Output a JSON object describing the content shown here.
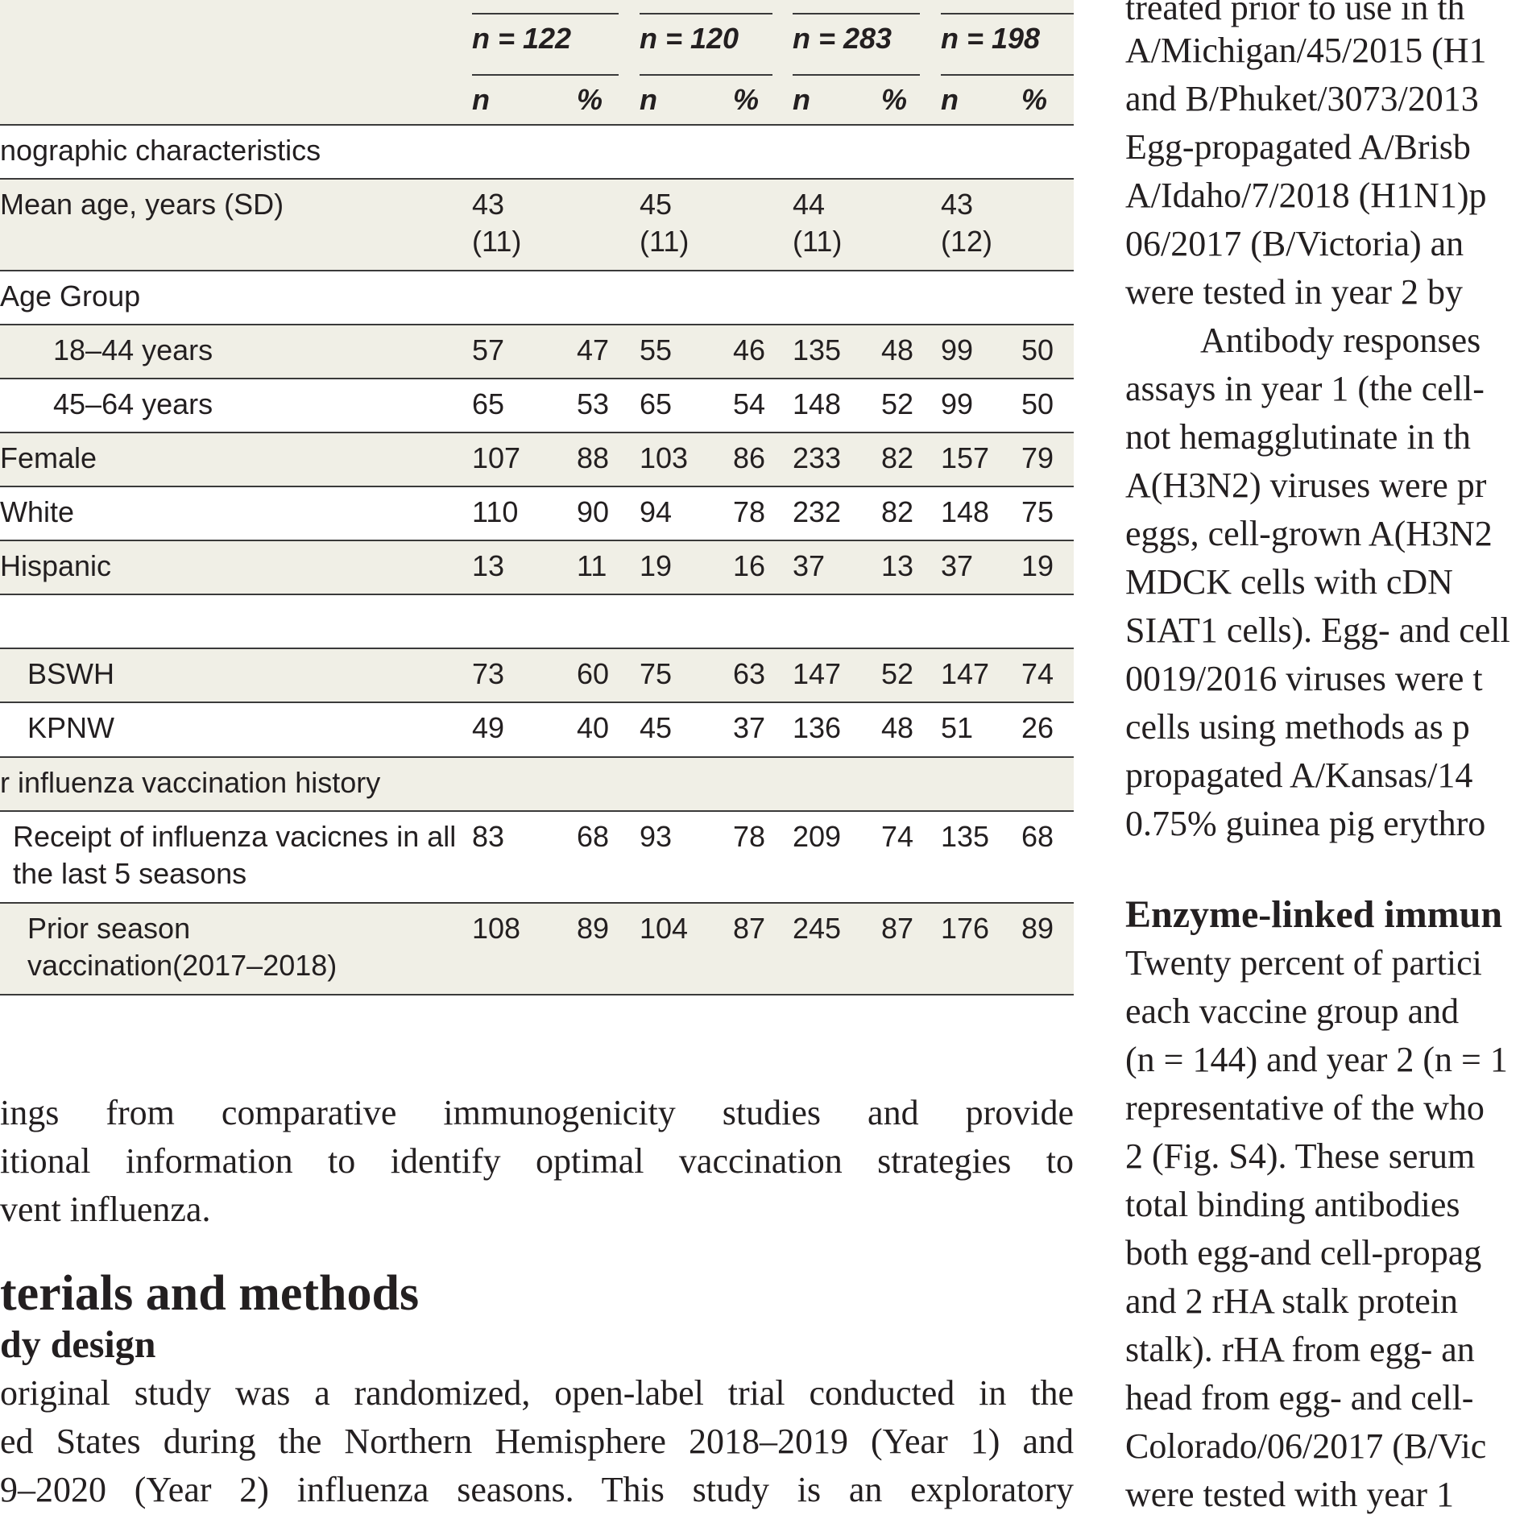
{
  "table": {
    "group_headers": [
      "n = 122",
      "n = 120",
      "n = 283",
      "n = 198"
    ],
    "subheaders": [
      "n",
      "%",
      "n",
      "%",
      "n",
      "%",
      "n",
      "%"
    ],
    "rows": [
      {
        "label": "nographic characteristics",
        "values": []
      },
      {
        "label": "Mean age, years (SD)",
        "values": [
          "43\n(11)",
          "",
          "45\n(11)",
          "",
          "44\n(11)",
          "",
          "43\n(12)",
          ""
        ]
      },
      {
        "label": "Age Group",
        "values": []
      },
      {
        "label": "18–44 years",
        "values": [
          "57",
          "47",
          "55",
          "46",
          "135",
          "48",
          "99",
          "50"
        ]
      },
      {
        "label": "45–64 years",
        "values": [
          "65",
          "53",
          "65",
          "54",
          "148",
          "52",
          "99",
          "50"
        ]
      },
      {
        "label": "Female",
        "values": [
          "107",
          "88",
          "103",
          "86",
          "233",
          "82",
          "157",
          "79"
        ]
      },
      {
        "label": "White",
        "values": [
          "110",
          "90",
          "94",
          "78",
          "232",
          "82",
          "148",
          "75"
        ]
      },
      {
        "label": "Hispanic",
        "values": [
          "13",
          "11",
          "19",
          "16",
          "37",
          "13",
          "37",
          "19"
        ]
      },
      {
        "label": "",
        "values": []
      },
      {
        "label": "BSWH",
        "values": [
          "73",
          "60",
          "75",
          "63",
          "147",
          "52",
          "147",
          "74"
        ]
      },
      {
        "label": "KPNW",
        "values": [
          "49",
          "40",
          "45",
          "37",
          "136",
          "48",
          "51",
          "26"
        ]
      },
      {
        "label": "r influenza vaccination history",
        "values": []
      },
      {
        "label": "Receipt of influenza vacicnes in all the last 5 seasons",
        "values": [
          "83",
          "68",
          "93",
          "78",
          "209",
          "74",
          "135",
          "68"
        ]
      },
      {
        "label": "Prior season vaccination(2017–2018)",
        "values": [
          "108",
          "89",
          "104",
          "87",
          "245",
          "87",
          "176",
          "89"
        ]
      }
    ]
  },
  "left_text": {
    "para_lines": [
      "ings from comparative immunogenicity studies and provide",
      "itional information to identify optimal vaccination strategies to",
      "vent influenza."
    ],
    "heading": "terials and methods",
    "subheading": "dy design",
    "para2_lines": [
      "original study was a randomized, open-label trial conducted in the",
      "ed States during the Northern Hemisphere 2018–2019 (Year 1) and",
      "9–2020 (Year 2) influenza seasons. This study is an exploratory"
    ]
  },
  "right_text": {
    "lines_top": [
      "treated prior to use in th",
      "A/Michigan/45/2015 (H1",
      "and B/Phuket/3073/2013",
      "Egg-propagated A/Brisb",
      "A/Idaho/7/2018 (H1N1)p",
      "06/2017 (B/Victoria) an",
      "were tested in year 2 by",
      "Antibody responses",
      "assays in year 1 (the cell-",
      "not hemagglutinate in th",
      "A(H3N2) viruses were pr",
      "eggs, cell-grown A(H3N2",
      "MDCK cells with cDN",
      "SIAT1 cells). Egg- and cell",
      "0019/2016 viruses were t",
      "cells using methods as p",
      "propagated A/Kansas/14",
      "0.75% guinea pig erythro"
    ],
    "heading": "Enzyme-linked immun",
    "lines_bottom": [
      "Twenty percent of partici",
      "each vaccine group and",
      "(n = 144) and year 2 (n = 1",
      "representative of the who",
      "2 (Fig. S4). These serum",
      "total binding antibodies",
      "both egg-and cell-propag",
      "and 2 rHA stalk protein",
      "stalk). rHA from egg- an",
      "head from egg- and cell-",
      "Colorado/06/2017 (B/Vic",
      "were tested with year 1"
    ]
  }
}
